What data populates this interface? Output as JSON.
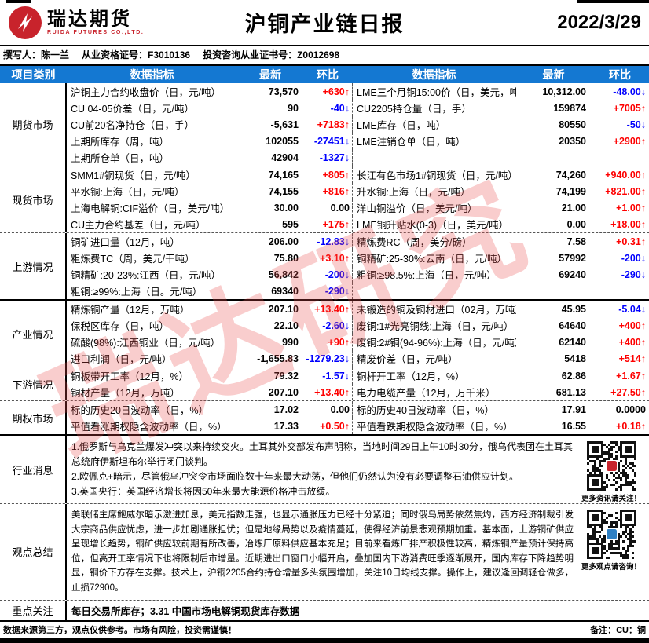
{
  "header": {
    "logo_text": "瑞达期货",
    "logo_sub": "RUIDA FUTURES CO.,LTD.",
    "title": "沪铜产业链日报",
    "date": "2022/3/29"
  },
  "byline": [
    "撰写人：陈一兰",
    "从业资格证号：F3010136",
    "投资咨询从业证书号：Z0012698"
  ],
  "watermark": "瑞达研究",
  "colors": {
    "header_blue": "#1478d2",
    "up_red": "#fe0000",
    "down_blue": "#0000fe",
    "logo_red": "#c8232c"
  },
  "table": {
    "headers": [
      "项目类别",
      "数据指标",
      "最新",
      "环比",
      "数据指标",
      "最新",
      "环比"
    ],
    "groups": [
      {
        "category": "期货市场",
        "kind": "rows",
        "rows": [
          [
            "沪铜主力合约收盘价（日，元/吨）",
            "73,570",
            "+630↑",
            "up",
            "LME三个月铜15:00价（日，美元，吨）",
            "10,312.00",
            "-48.00↓",
            "down"
          ],
          [
            "CU 04-05价差（日，元/吨）",
            "90",
            "-40↓",
            "down",
            "CU2205持仓量（日，手）",
            "159874",
            "+7005↑",
            "up"
          ],
          [
            "CU前20名净持仓（日，手）",
            "-5,631",
            "+7183↑",
            "up",
            "LME库存（日，吨）",
            "80550",
            "-50↓",
            "down"
          ],
          [
            "上期所库存（周，吨）",
            "102055",
            "-27451↓",
            "down",
            "LME注销仓单（日，吨）",
            "20350",
            "+2900↑",
            "up"
          ],
          [
            "上期所仓单（日，吨）",
            "42904",
            "-1327↓",
            "down",
            "",
            "",
            "",
            ""
          ]
        ]
      },
      {
        "category": "现货市场",
        "kind": "rows",
        "rows": [
          [
            "SMM1#铜现货（日，元/吨）",
            "74,165",
            "+805↑",
            "up",
            "长江有色市场1#铜现货（日，元/吨）",
            "74,260",
            "+940.00↑",
            "up"
          ],
          [
            "平水铜:上海（日，元/吨）",
            "74,155",
            "+816↑",
            "up",
            "升水铜:上海（日，元/吨）",
            "74,199",
            "+821.00↑",
            "up"
          ],
          [
            "上海电解铜:CIF溢价（日，美元/吨）",
            "30.00",
            "0.00",
            "flat",
            "洋山铜溢价（日，美元/吨）",
            "21.00",
            "+1.00↑",
            "up"
          ],
          [
            "CU主力合约基差（日，元/吨）",
            "595",
            "+175↑",
            "up",
            "LME铜升贴水(0-3)（日，美元/吨）",
            "0.00",
            "+18.00↑",
            "up"
          ]
        ]
      },
      {
        "category": "上游情况",
        "kind": "rows",
        "rows": [
          [
            "铜矿进口量（12月，吨）",
            "206.00",
            "-12.83↓",
            "down",
            "精炼费RC（周，美分/磅）",
            "7.58",
            "+0.31↑",
            "up"
          ],
          [
            "粗炼费TC（周，美元/干吨）",
            "75.80",
            "+3.10↑",
            "up",
            "铜精矿:25-30%:云南（日，元/吨）",
            "57992",
            "-200↓",
            "down"
          ],
          [
            "铜精矿:20-23%:江西（日，元/吨）",
            "56,842",
            "-200↓",
            "down",
            "粗铜:≥98.5%:上海（日，元/吨）",
            "69240",
            "-290↓",
            "down"
          ],
          [
            "粗铜:≥99%:上海（日。元/吨）",
            "69340",
            "-290↓",
            "down",
            "",
            "",
            "",
            ""
          ]
        ]
      },
      {
        "category": "产业情况",
        "kind": "rows",
        "rows": [
          [
            "精炼铜产量（12月，万吨）",
            "207.10",
            "+13.40↑",
            "up",
            "未锻造的铜及铜材进口（02月，万吨）",
            "45.95",
            "-5.04↓",
            "down"
          ],
          [
            "保税区库存（日，吨）",
            "22.10",
            "-2.60↓",
            "down",
            "废铜:1#光亮铜线:上海（日，元/吨）",
            "64640",
            "+400↑",
            "up"
          ],
          [
            "硫酸(98%):江西铜业（日，元/吨）",
            "990",
            "+90↑",
            "up",
            "废铜:2#铜(94-96%):上海（日，元/吨）",
            "62140",
            "+400↑",
            "up"
          ],
          [
            "进口利润（日，元/吨）",
            "-1,655.83",
            "-1279.23↓",
            "down",
            "精废价差（日，元/吨）",
            "5418",
            "+514↑",
            "up"
          ]
        ]
      },
      {
        "category": "下游情况",
        "kind": "rows",
        "rows": [
          [
            "铜板带开工率（12月，%）",
            "79.32",
            "-1.57↓",
            "down",
            "铜杆开工率（12月，%）",
            "62.86",
            "+1.67↑",
            "up"
          ],
          [
            "铜材产量（12月，万吨）",
            "207.10",
            "+13.40↑",
            "up",
            "电力电缆产量（12月，万千米）",
            "681.13",
            "+27.50↑",
            "up"
          ]
        ]
      },
      {
        "category": "期权市场",
        "kind": "rows",
        "rows": [
          [
            "标的历史20日波动率（日，%）",
            "17.02",
            "0.00",
            "flat",
            "标的历史40日波动率（日，%）",
            "17.91",
            "0.0000",
            "flat"
          ],
          [
            "平值看涨期权隐含波动率（日，%）",
            "17.33",
            "+0.50↑",
            "up",
            "平值看跌期权隐含波动率（日，%）",
            "16.55",
            "+0.18↑",
            "up"
          ]
        ]
      },
      {
        "category": "行业消息",
        "kind": "text",
        "css": "g-news",
        "lines": [
          "1.俄罗斯与乌克兰爆发冲突以来持续交火。土耳其外交部发布声明称，当地时间29日上午10时30分，俄乌代表团在土耳其总统府伊斯坦布尔举行闭门谈判。",
          "2.欧佩克+暗示，尽管俄乌冲突令市场面临数十年来最大动荡，但他们仍然认为没有必要调整石油供应计划。",
          "3.英国央行：英国经济增长将因50年来最大能源价格冲击放缓。"
        ],
        "qr": {
          "caption": "更多资讯请关注！",
          "accent": "#c8232c"
        }
      },
      {
        "category": "观点总结",
        "kind": "text",
        "css": "g-view",
        "lines": [
          "美联储主席鲍威尔暗示激进加息，美元指数走强，也显示通胀压力已经十分紧迫；同时俄乌局势依然焦灼，西方经济制裁引发大宗商品供应忧虑，进一步加剧通胀担忧；但是地缘局势以及疫情蔓延，使得经济前景悲观预期加重。基本面，上游铜矿供应呈现增长趋势，铜矿供应较前期有所改善，冶炼厂原料供应基本充足；目前来看炼厂排产积极性较高，精炼铜产量预计保持高位，但高开工率情况下也将限制后市增量。近期进出口窗口小幅开启，叠加国内下游消费旺季逐渐展开，国内库存下降趋势明显，铜价下方存在支撑。技术上，沪铜2205合约持仓增量多头氛围增加，关注10日均线支撑。操作上，建议逢回调轻仓做多，止损72900。"
        ],
        "par": true,
        "qr": {
          "caption": "更多观点请咨询！",
          "accent": "#2e80c4"
        }
      },
      {
        "category": "重点关注",
        "kind": "focus",
        "text": "每日交易所库存；3.31 中国市场电解铜现货库存数据"
      }
    ]
  },
  "footer": {
    "disclaimer": "数据来源第三方，观点仅供参考。市场有风险，投资需谨慎！",
    "note": "备注：CU：铜"
  }
}
